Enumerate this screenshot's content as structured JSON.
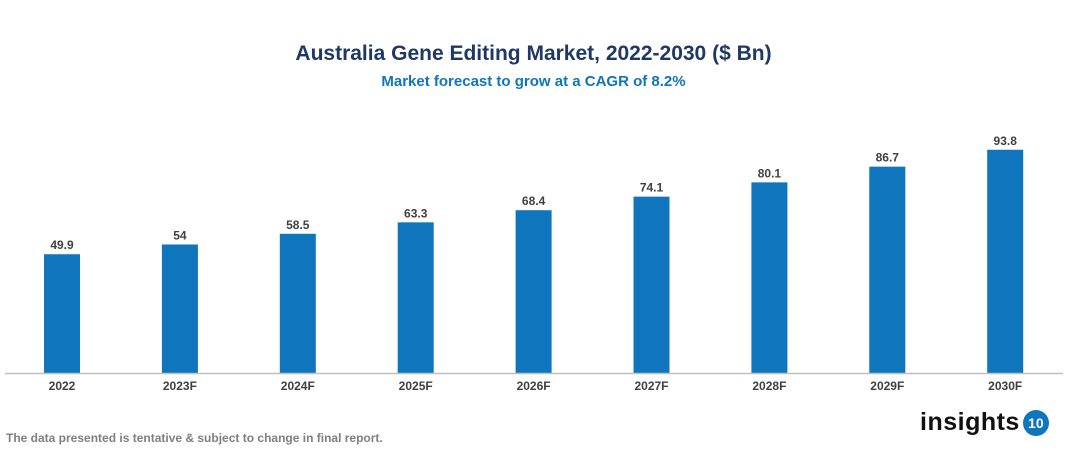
{
  "chart_data": {
    "type": "bar",
    "title": "Australia Gene Editing Market, 2022-2030 ($ Bn)",
    "subtitle": "Market forecast to grow at a CAGR of 8.2%",
    "categories": [
      "2022",
      "2023F",
      "2024F",
      "2025F",
      "2026F",
      "2027F",
      "2028F",
      "2029F",
      "2030F"
    ],
    "values": [
      49.9,
      54,
      58.5,
      63.3,
      68.4,
      74.1,
      80.1,
      86.7,
      93.8
    ],
    "xlabel": "",
    "ylabel": "",
    "ylim": [
      0,
      100
    ],
    "grid": false,
    "legend": "none",
    "bar_color": "#0f75bc"
  },
  "footnote": "The data presented is tentative & subject to change in final report.",
  "logo": {
    "text": "insights",
    "badge": "10"
  }
}
